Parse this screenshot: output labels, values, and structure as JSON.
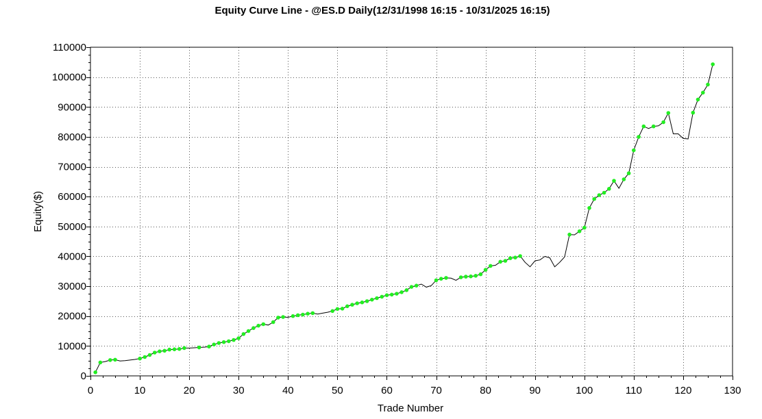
{
  "chart_data": {
    "type": "line",
    "title": "Equity Curve Line - @ES.D Daily(12/31/1998 16:15 - 10/31/2025 16:15)",
    "xlabel": "Trade Number",
    "ylabel": "Equity($)",
    "xlim": [
      0,
      130
    ],
    "ylim": [
      0,
      110000
    ],
    "x_ticks": [
      0,
      10,
      20,
      30,
      40,
      50,
      60,
      70,
      80,
      90,
      100,
      110,
      120,
      130
    ],
    "y_ticks": [
      0,
      10000,
      20000,
      30000,
      40000,
      50000,
      60000,
      70000,
      80000,
      90000,
      100000,
      110000
    ],
    "grid": true,
    "line_color": "#000000",
    "marker_color": "#22ee22",
    "series": [
      {
        "x": [
          1,
          2,
          3,
          4,
          5,
          6,
          7,
          8,
          9,
          10,
          11,
          12,
          13,
          14,
          15,
          16,
          17,
          18,
          19,
          20,
          21,
          22,
          23,
          24,
          25,
          26,
          27,
          28,
          29,
          30,
          31,
          32,
          33,
          34,
          35,
          36,
          37,
          38,
          39,
          40,
          41,
          42,
          43,
          44,
          45,
          46,
          47,
          48,
          49,
          50,
          51,
          52,
          53,
          54,
          55,
          56,
          57,
          58,
          59,
          60,
          61,
          62,
          63,
          64,
          65,
          66,
          67,
          68,
          69,
          70,
          71,
          72,
          73,
          74,
          75,
          76,
          77,
          78,
          79,
          80,
          81,
          82,
          83,
          84,
          85,
          86,
          87,
          88,
          89,
          90,
          91,
          92,
          93,
          94,
          95,
          96,
          97,
          98,
          99,
          100,
          101,
          102,
          103,
          104,
          105,
          106,
          107,
          108,
          109,
          110,
          111,
          112,
          113,
          114,
          115,
          116,
          117,
          118,
          119,
          120,
          121,
          122,
          123,
          124,
          125,
          126
        ],
        "y": [
          1200,
          4500,
          4800,
          5300,
          5400,
          5000,
          5100,
          5300,
          5500,
          5800,
          6300,
          7000,
          7800,
          8200,
          8400,
          8800,
          8900,
          9000,
          9300,
          9300,
          9400,
          9500,
          9600,
          9800,
          10500,
          11000,
          11300,
          11600,
          12000,
          12600,
          14000,
          15000,
          16000,
          16800,
          17300,
          17000,
          18000,
          19500,
          19700,
          19600,
          20000,
          20300,
          20500,
          20800,
          21000,
          20700,
          21000,
          21300,
          21700,
          22400,
          22500,
          23300,
          23800,
          24300,
          24600,
          25000,
          25500,
          26000,
          26500,
          27000,
          27200,
          27500,
          28000,
          28700,
          29800,
          30200,
          30700,
          29700,
          30200,
          32000,
          32500,
          32800,
          32700,
          32000,
          33000,
          33200,
          33300,
          33500,
          34000,
          35500,
          36800,
          37000,
          38200,
          38500,
          39400,
          39600,
          40100,
          38000,
          36500,
          38500,
          38800,
          40000,
          39500,
          36500,
          38000,
          39800,
          47300,
          47200,
          48400,
          49600,
          56200,
          59200,
          60500,
          61300,
          62600,
          65300,
          62800,
          65800,
          67800,
          75500,
          80000,
          83500,
          82800,
          83500,
          83700,
          84900,
          88000,
          81000,
          81000,
          79500,
          79300,
          88100,
          92500,
          94800,
          97500,
          104300
        ],
        "markers": [
          1,
          1,
          0,
          1,
          1,
          0,
          0,
          0,
          0,
          1,
          1,
          1,
          1,
          1,
          1,
          1,
          1,
          1,
          1,
          0,
          0,
          1,
          0,
          1,
          1,
          1,
          1,
          1,
          1,
          1,
          1,
          1,
          1,
          1,
          1,
          0,
          1,
          1,
          1,
          0,
          1,
          1,
          1,
          1,
          1,
          0,
          0,
          0,
          1,
          1,
          1,
          1,
          1,
          1,
          1,
          1,
          1,
          1,
          1,
          1,
          1,
          1,
          1,
          1,
          1,
          1,
          0,
          0,
          0,
          1,
          1,
          1,
          0,
          0,
          1,
          1,
          1,
          1,
          1,
          1,
          1,
          0,
          1,
          1,
          1,
          1,
          1,
          0,
          0,
          0,
          0,
          0,
          0,
          0,
          0,
          0,
          1,
          0,
          1,
          1,
          1,
          1,
          1,
          1,
          1,
          1,
          0,
          1,
          1,
          1,
          1,
          1,
          0,
          1,
          0,
          1,
          1,
          0,
          0,
          0,
          0,
          1,
          1,
          1,
          1,
          1
        ]
      }
    ]
  }
}
